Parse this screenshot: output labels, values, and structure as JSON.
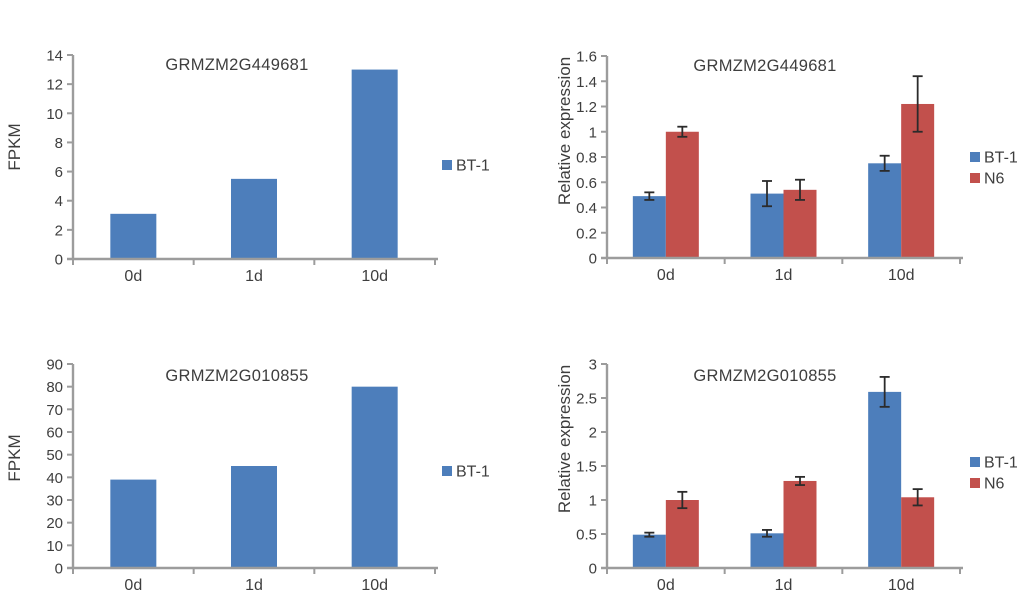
{
  "figure": {
    "background": "#ffffff",
    "description": "Four bar charts comparing FPKM and qPCR relative expression for two maize genes"
  },
  "colors": {
    "blue": "#4D7EBB",
    "red": "#C2504C",
    "axis": "#9C9C9C",
    "text": "#3E3E3E",
    "error": "#2B2B2B"
  },
  "chart_data": [
    {
      "type": "bar",
      "title": "GRMZM2G449681",
      "ylabel": "FPKM",
      "xlabel": "",
      "categories": [
        "0d",
        "1d",
        "10d"
      ],
      "ylim": [
        0,
        14
      ],
      "yticks": [
        0,
        2,
        4,
        6,
        8,
        10,
        12,
        14
      ],
      "ytick_labels": [
        "0",
        "2",
        "4",
        "6",
        "8",
        "10",
        "12",
        "14"
      ],
      "grid": false,
      "legend_position": "right",
      "series": [
        {
          "name": "BT-1",
          "color_key": "blue",
          "values": [
            3.1,
            5.5,
            13
          ]
        }
      ]
    },
    {
      "type": "bar",
      "title": "GRMZM2G449681",
      "ylabel": "Relative expression",
      "xlabel": "",
      "categories": [
        "0d",
        "1d",
        "10d"
      ],
      "ylim": [
        0,
        1.6
      ],
      "yticks": [
        0,
        0.2,
        0.4,
        0.6,
        0.8,
        1,
        1.2,
        1.4,
        1.6
      ],
      "ytick_labels": [
        "0",
        "0.2",
        "0.4",
        "0.6",
        "0.8",
        "1",
        "1.2",
        "1.4",
        "1.6"
      ],
      "grid": false,
      "legend_position": "right",
      "series": [
        {
          "name": "BT-1",
          "color_key": "blue",
          "values": [
            0.49,
            0.51,
            0.75
          ],
          "errors": [
            0.03,
            0.1,
            0.06
          ]
        },
        {
          "name": "N6",
          "color_key": "red",
          "values": [
            1.0,
            0.54,
            1.22
          ],
          "errors": [
            0.04,
            0.08,
            0.22
          ]
        }
      ]
    },
    {
      "type": "bar",
      "title": "GRMZM2G010855",
      "ylabel": "FPKM",
      "xlabel": "",
      "categories": [
        "0d",
        "1d",
        "10d"
      ],
      "ylim": [
        0,
        90
      ],
      "yticks": [
        0,
        10,
        20,
        30,
        40,
        50,
        60,
        70,
        80,
        90
      ],
      "ytick_labels": [
        "0",
        "10",
        "20",
        "30",
        "40",
        "50",
        "60",
        "70",
        "80",
        "90"
      ],
      "grid": false,
      "legend_position": "right",
      "series": [
        {
          "name": "BT-1",
          "color_key": "blue",
          "values": [
            39,
            45,
            80
          ]
        }
      ]
    },
    {
      "type": "bar",
      "title": "GRMZM2G010855",
      "ylabel": "Relative expression",
      "xlabel": "",
      "categories": [
        "0d",
        "1d",
        "10d"
      ],
      "ylim": [
        0,
        3
      ],
      "yticks": [
        0,
        0.5,
        1,
        1.5,
        2,
        2.5,
        3
      ],
      "ytick_labels": [
        "0",
        "0.5",
        "1",
        "1.5",
        "2",
        "2.5",
        "3"
      ],
      "grid": false,
      "legend_position": "right",
      "series": [
        {
          "name": "BT-1",
          "color_key": "blue",
          "values": [
            0.49,
            0.51,
            2.59
          ],
          "errors": [
            0.03,
            0.05,
            0.22
          ]
        },
        {
          "name": "N6",
          "color_key": "red",
          "values": [
            1.0,
            1.28,
            1.04
          ],
          "errors": [
            0.12,
            0.06,
            0.12
          ]
        }
      ]
    }
  ]
}
